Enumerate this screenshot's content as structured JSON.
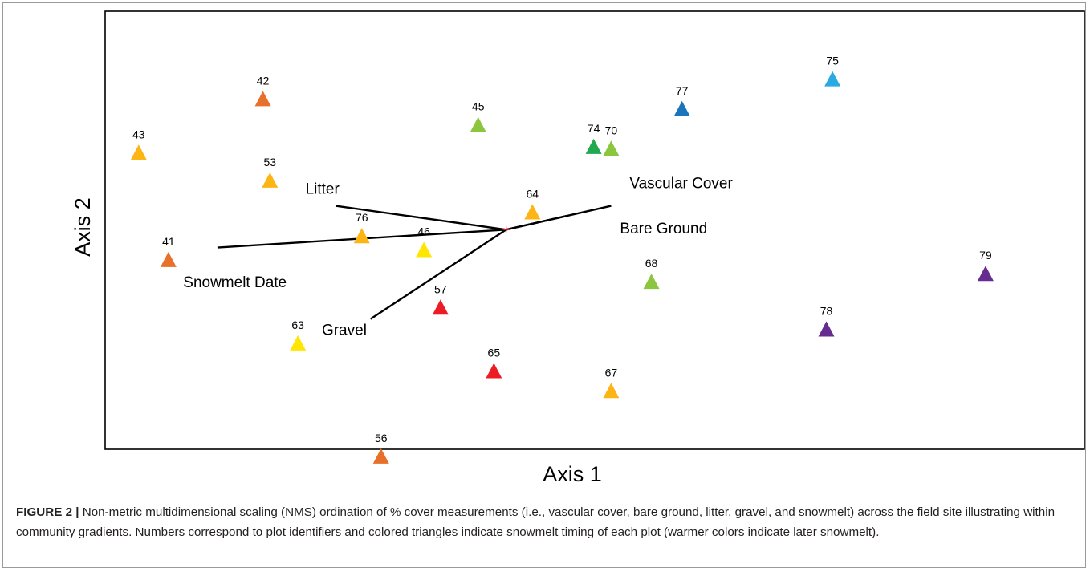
{
  "chart_data": {
    "type": "scatter",
    "xlabel": "Axis 1",
    "ylabel": "Axis 2",
    "xlim": [
      0,
      100
    ],
    "ylim": [
      0,
      100
    ],
    "grid": false,
    "legend": "none",
    "points": [
      {
        "label": "43",
        "x": 2,
        "y": 75,
        "color": "#FDB515"
      },
      {
        "label": "42",
        "x": 16.2,
        "y": 88.5,
        "color": "#E8702A"
      },
      {
        "label": "53",
        "x": 17,
        "y": 68,
        "color": "#FDB515"
      },
      {
        "label": "41",
        "x": 5.4,
        "y": 48,
        "color": "#E8702A"
      },
      {
        "label": "76",
        "x": 27.5,
        "y": 54,
        "color": "#FDB515"
      },
      {
        "label": "46",
        "x": 34.6,
        "y": 50.5,
        "color": "#FFE600"
      },
      {
        "label": "45",
        "x": 40.8,
        "y": 82,
        "color": "#8CC63F"
      },
      {
        "label": "64",
        "x": 47,
        "y": 60,
        "color": "#FDB515"
      },
      {
        "label": "74",
        "x": 54,
        "y": 76.5,
        "color": "#21A94F"
      },
      {
        "label": "70",
        "x": 56,
        "y": 76,
        "color": "#8CC63F"
      },
      {
        "label": "77",
        "x": 64.1,
        "y": 86,
        "color": "#1B75BC"
      },
      {
        "label": "75",
        "x": 81.3,
        "y": 93.5,
        "color": "#29ABE2"
      },
      {
        "label": "68",
        "x": 60.6,
        "y": 42.5,
        "color": "#8CC63F"
      },
      {
        "label": "57",
        "x": 36.5,
        "y": 36,
        "color": "#ED1C24"
      },
      {
        "label": "63",
        "x": 20.2,
        "y": 27,
        "color": "#FFE600"
      },
      {
        "label": "65",
        "x": 42.6,
        "y": 20,
        "color": "#ED1C24"
      },
      {
        "label": "67",
        "x": 56,
        "y": 15,
        "color": "#FDB515"
      },
      {
        "label": "56",
        "x": 29.7,
        "y": -1.5,
        "color": "#E8702A"
      },
      {
        "label": "79",
        "x": 98.8,
        "y": 44.5,
        "color": "#662D91"
      },
      {
        "label": "78",
        "x": 80.6,
        "y": 30.5,
        "color": "#662D91"
      }
    ],
    "origin": {
      "x": 44,
      "y": 55.5
    },
    "vectors": [
      {
        "label": "Vascular Cover",
        "x": 56,
        "y": 61.5,
        "label_x": 64,
        "label_y": 66
      },
      {
        "label": "Bare Ground",
        "x": 51,
        "y": 59,
        "label_x": 62,
        "label_y": 54.5
      },
      {
        "label": "Litter",
        "x": 24.5,
        "y": 61.5,
        "label_x": 23,
        "label_y": 64.5
      },
      {
        "label": "Snowmelt Date",
        "x": 11,
        "y": 51,
        "label_x": 13,
        "label_y": 41
      },
      {
        "label": "Gravel",
        "x": 28.5,
        "y": 33,
        "label_x": 25.5,
        "label_y": 29
      }
    ]
  },
  "caption": {
    "label": "FIGURE 2 |",
    "text": " Non-metric multidimensional scaling (NMS) ordination of % cover measurements (i.e., vascular cover, bare ground, litter, gravel, and snowmelt) across the field site illustrating within community gradients. Numbers correspond to plot identifiers and colored triangles indicate snowmelt timing of each plot (warmer colors indicate later snowmelt)."
  },
  "colors": {
    "frame": "#000000",
    "vector": "#000000",
    "centroid": "#ED1C24",
    "text": "#231f20"
  }
}
